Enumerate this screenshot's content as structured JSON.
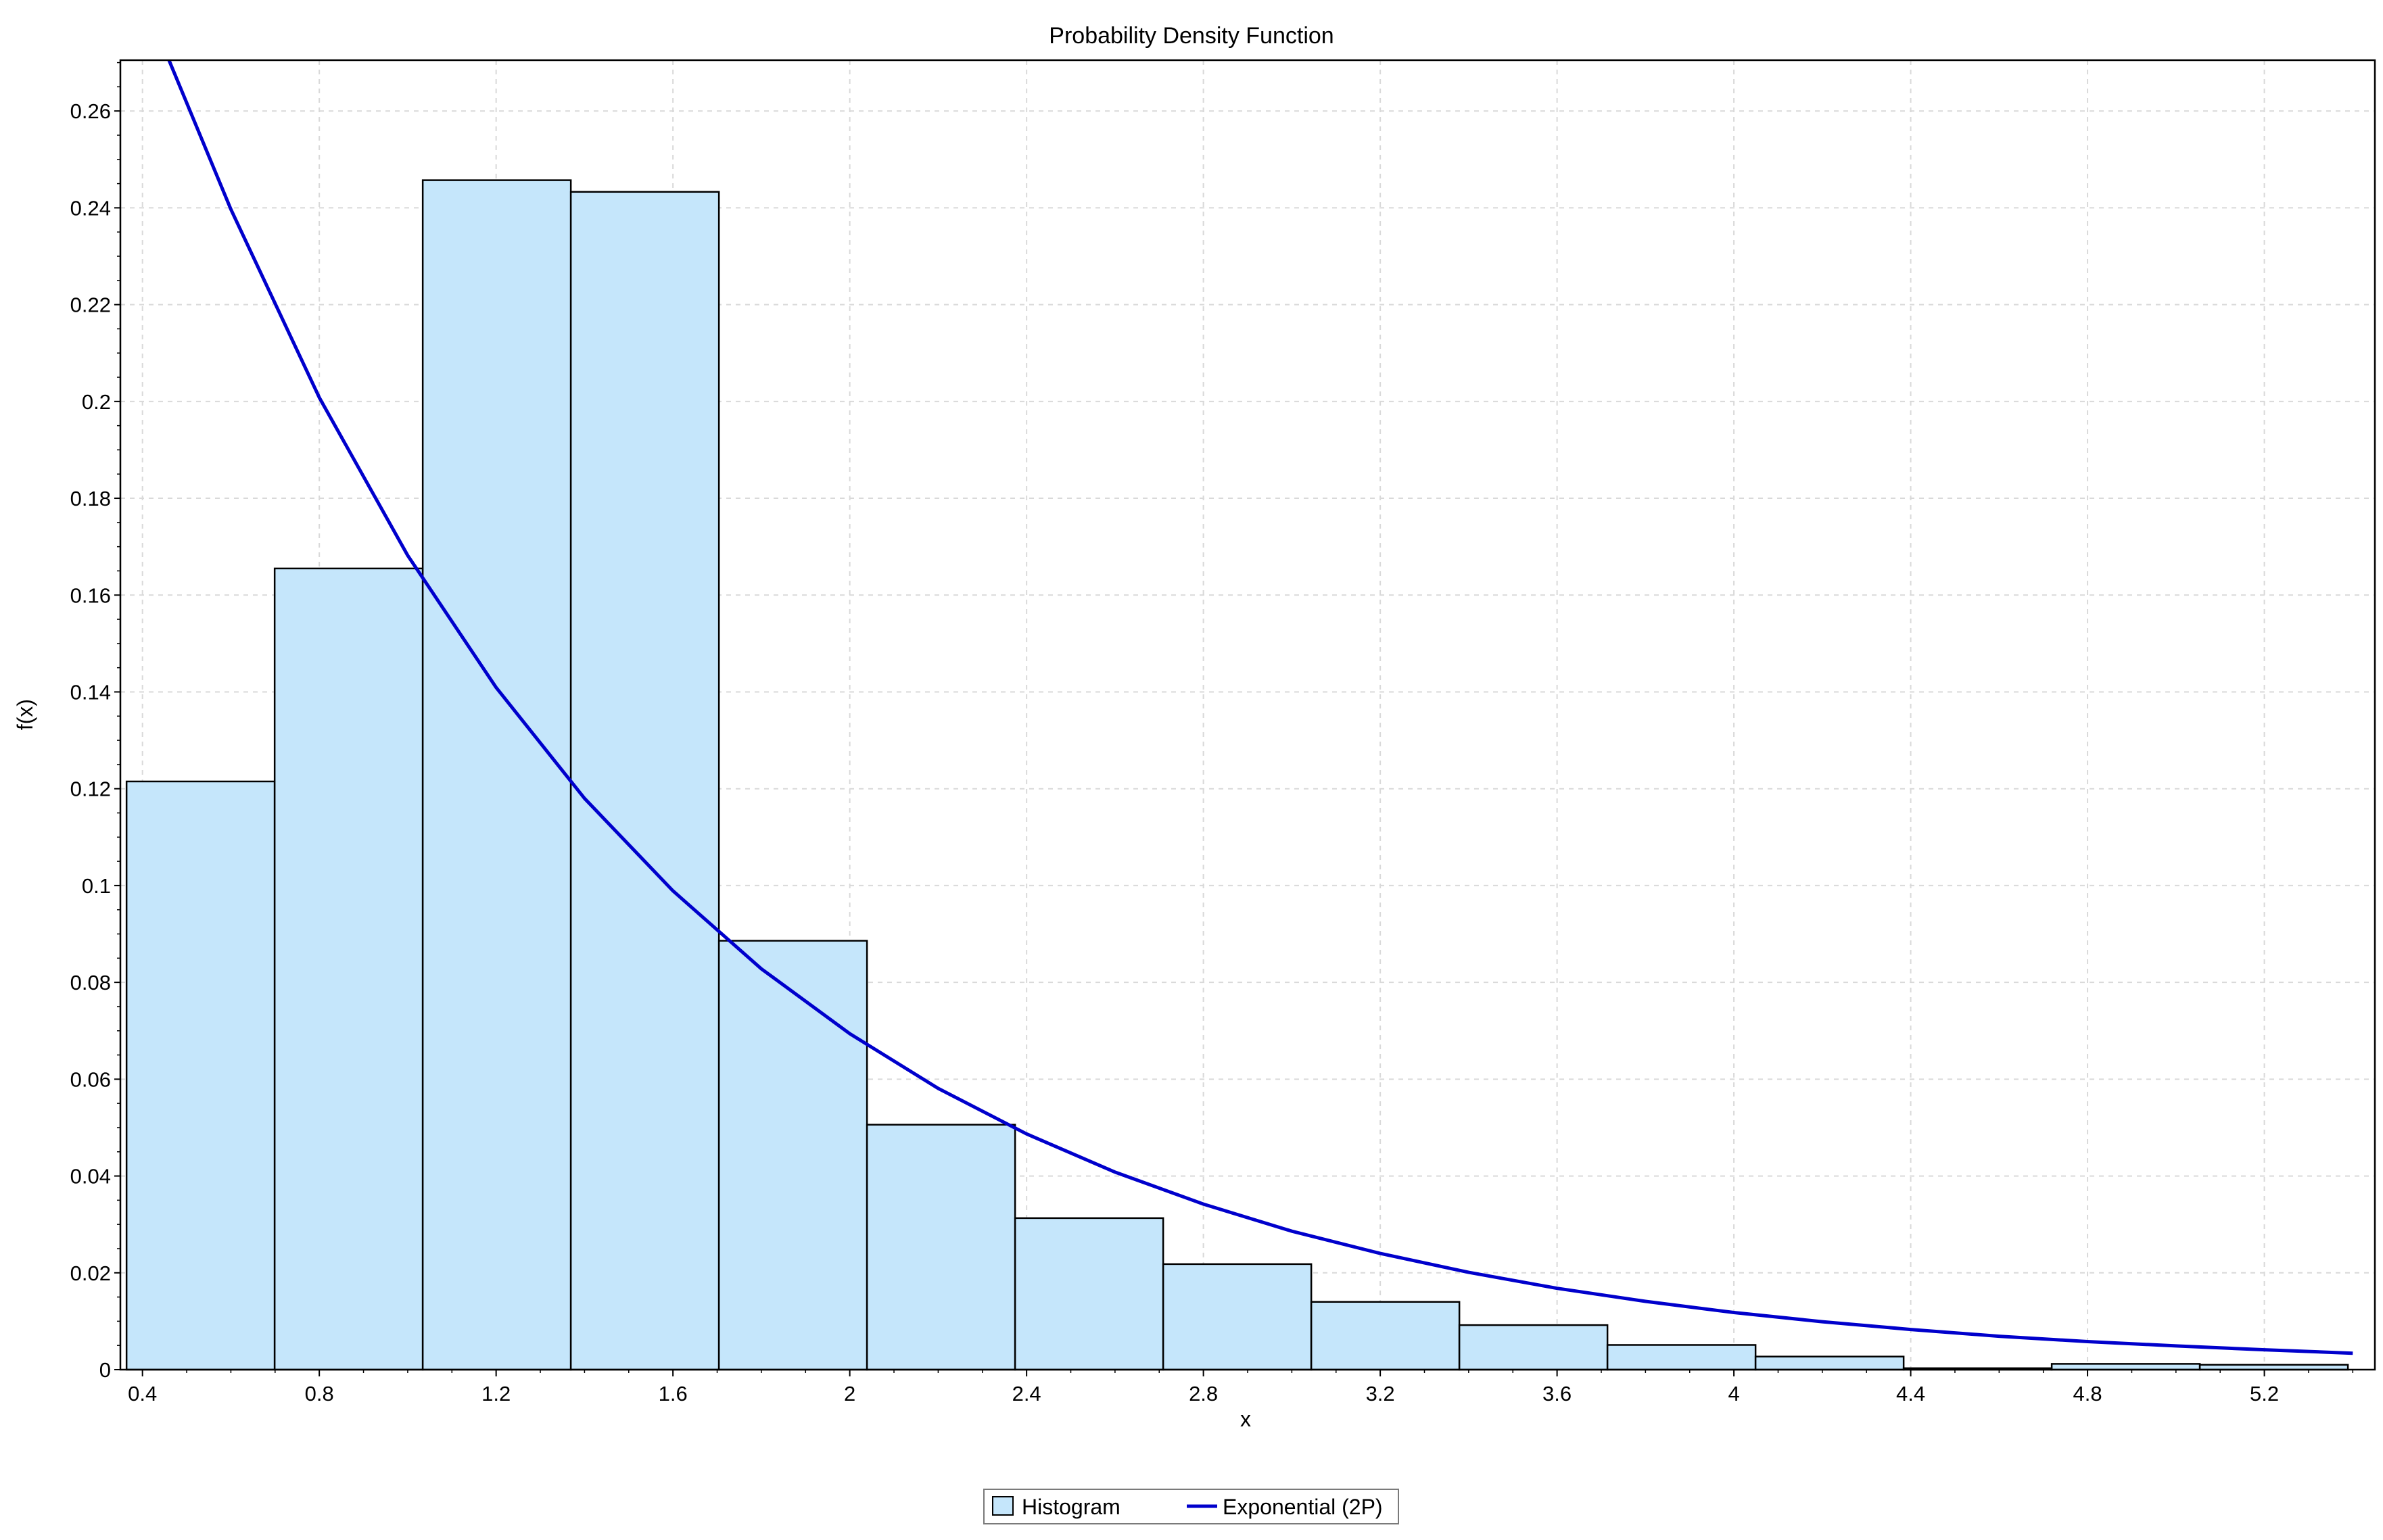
{
  "chart_data": {
    "type": "bar",
    "title": "Probability Density Function",
    "xlabel": "x",
    "ylabel": "f(x)",
    "xlim": [
      0.35,
      5.45
    ],
    "ylim": [
      0,
      0.2705
    ],
    "x_ticks": [
      "0.4",
      "0.8",
      "1.2",
      "1.6",
      "2",
      "2.4",
      "2.8",
      "3.2",
      "3.6",
      "4",
      "4.4",
      "4.8",
      "5.2"
    ],
    "y_ticks": [
      "0",
      "0.02",
      "0.04",
      "0.06",
      "0.08",
      "0.1",
      "0.12",
      "0.14",
      "0.16",
      "0.18",
      "0.2",
      "0.22",
      "0.24",
      "0.26"
    ],
    "grid": true,
    "legend_position": "bottom-center",
    "histogram": {
      "name": "Histogram",
      "color": "#c5e6fb",
      "edge_color": "#000000",
      "bins": [
        {
          "x0": 0.364,
          "x1": 0.699,
          "value": 0.1215
        },
        {
          "x0": 0.699,
          "x1": 1.034,
          "value": 0.1655
        },
        {
          "x0": 1.034,
          "x1": 1.369,
          "value": 0.2457
        },
        {
          "x0": 1.369,
          "x1": 1.704,
          "value": 0.2433
        },
        {
          "x0": 1.704,
          "x1": 2.039,
          "value": 0.0886
        },
        {
          "x0": 2.039,
          "x1": 2.374,
          "value": 0.0506
        },
        {
          "x0": 2.374,
          "x1": 2.709,
          "value": 0.0313
        },
        {
          "x0": 2.709,
          "x1": 3.044,
          "value": 0.0218
        },
        {
          "x0": 3.044,
          "x1": 3.379,
          "value": 0.014
        },
        {
          "x0": 3.379,
          "x1": 3.714,
          "value": 0.0092
        },
        {
          "x0": 3.714,
          "x1": 4.049,
          "value": 0.0051
        },
        {
          "x0": 4.049,
          "x1": 4.384,
          "value": 0.0027
        },
        {
          "x0": 4.384,
          "x1": 4.719,
          "value": 0.0003
        },
        {
          "x0": 4.719,
          "x1": 5.054,
          "value": 0.0012
        },
        {
          "x0": 5.054,
          "x1": 5.389,
          "value": 0.001
        }
      ]
    },
    "curve": {
      "name": "Exponential (2P)",
      "color": "#0000cc",
      "x": [
        0.46,
        0.6,
        0.8,
        1.0,
        1.2,
        1.4,
        1.6,
        1.8,
        2.0,
        2.2,
        2.4,
        2.6,
        2.8,
        3.0,
        3.2,
        3.4,
        3.6,
        3.8,
        4.0,
        4.2,
        4.4,
        4.6,
        4.8,
        5.0,
        5.2,
        5.4
      ],
      "y": [
        0.2705,
        0.2397,
        0.2008,
        0.1682,
        0.1409,
        0.118,
        0.0989,
        0.0828,
        0.0694,
        0.0581,
        0.0487,
        0.0408,
        0.0342,
        0.0286,
        0.024,
        0.0201,
        0.0168,
        0.0141,
        0.0118,
        0.0099,
        0.0083,
        0.0069,
        0.0058,
        0.0049,
        0.0041,
        0.0034
      ]
    }
  }
}
